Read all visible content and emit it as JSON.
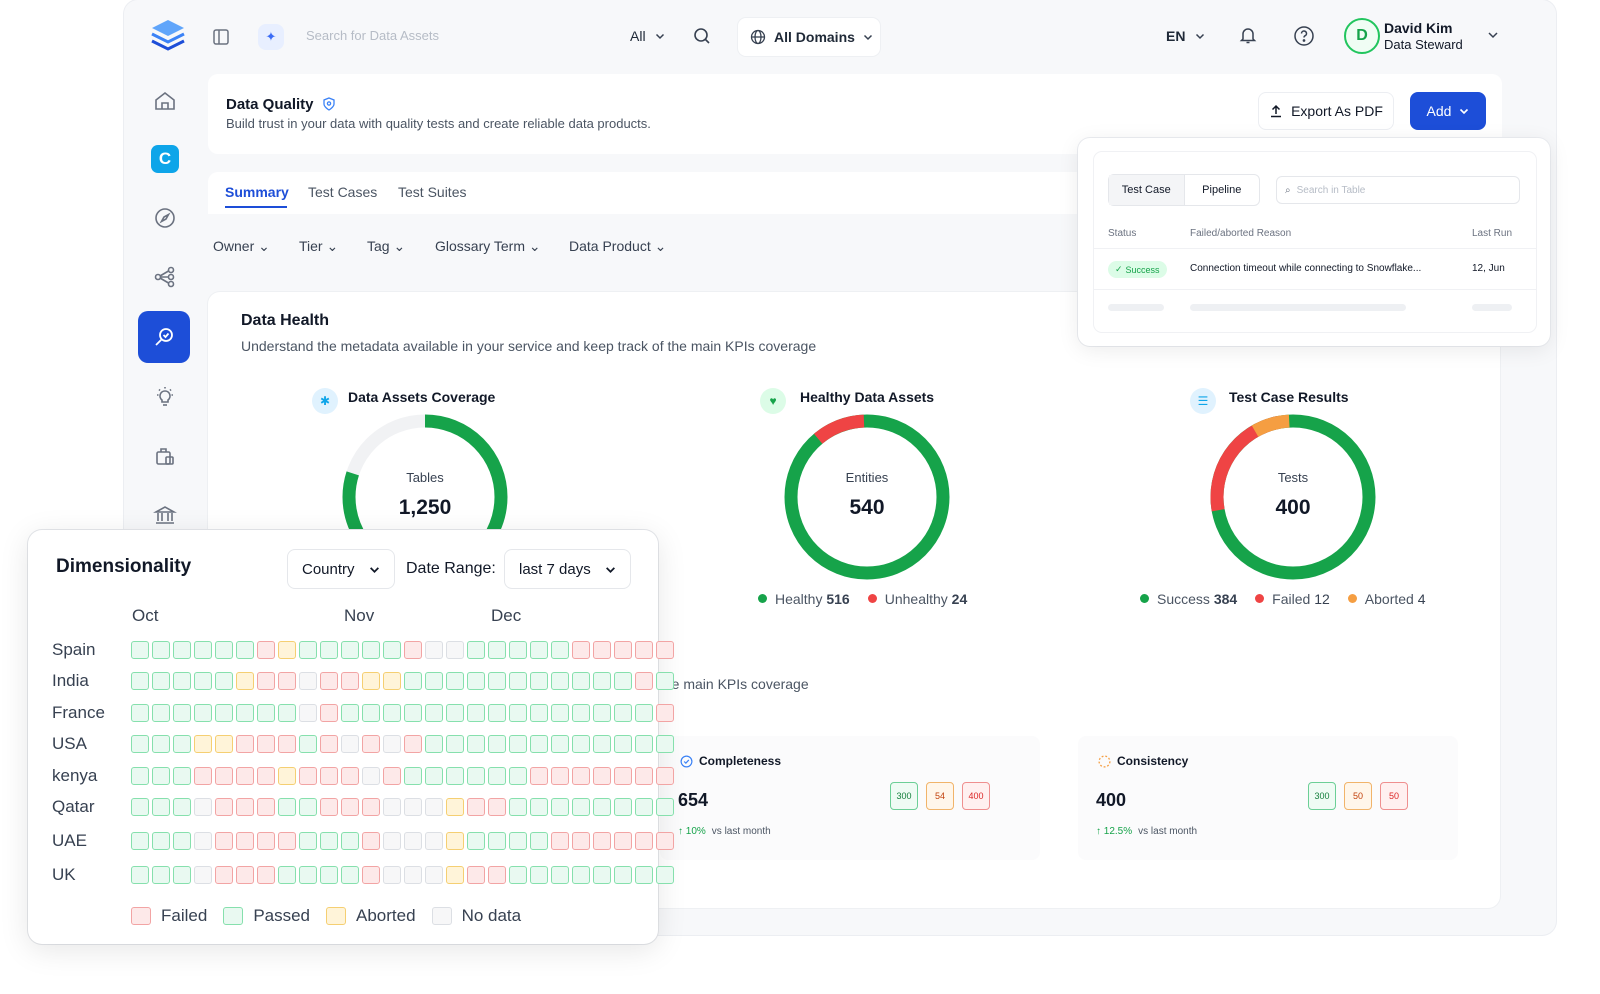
{
  "topbar": {
    "search_placeholder": "Search for Data Assets",
    "search_scope": "All",
    "domains": "All Domains",
    "language": "EN",
    "user_initial": "D",
    "user_name": "David Kim",
    "user_role": "Data Steward"
  },
  "sidebar": {
    "items": [
      {
        "icon": "home-icon"
      },
      {
        "icon": "collate-logo-icon"
      },
      {
        "icon": "explore-compass-icon"
      },
      {
        "icon": "lineage-icon"
      },
      {
        "icon": "data-quality-icon",
        "active": true
      },
      {
        "icon": "insights-bulb-icon"
      },
      {
        "icon": "data-products-icon"
      },
      {
        "icon": "governance-bank-icon"
      }
    ]
  },
  "header": {
    "title": "Data Quality",
    "subtitle": "Build trust in your data with quality tests and create reliable data products.",
    "export_label": "Export As PDF",
    "add_label": "Add"
  },
  "tabs": [
    "Summary",
    "Test Cases",
    "Test Suites"
  ],
  "filters": [
    "Owner",
    "Tier",
    "Tag",
    "Glossary Term",
    "Data Product"
  ],
  "data_health": {
    "title": "Data Health",
    "subtitle": "Understand the metadata available in your service and keep track of the main KPIs coverage",
    "subtitle_partial": "the main KPIs coverage",
    "kpis": [
      {
        "title": "Data Assets Coverage",
        "center_label": "Tables",
        "center_value": "1,250"
      },
      {
        "title": "Healthy Data Assets",
        "center_label": "Entities",
        "center_value": "540",
        "legend": [
          {
            "label": "Healthy",
            "value": "516",
            "color": "#16a34a"
          },
          {
            "label": "Unhealthy",
            "value": "24",
            "color": "#ef4444"
          }
        ]
      },
      {
        "title": "Test Case Results",
        "center_label": "Tests",
        "center_value": "400",
        "legend": [
          {
            "label": "Success",
            "value": "384",
            "color": "#16a34a"
          },
          {
            "label": "Failed",
            "value": "12",
            "color": "#ef4444"
          },
          {
            "label": "Aborted",
            "value": "4",
            "color": "#f59e42"
          }
        ]
      }
    ],
    "metrics": [
      {
        "title": "Completeness",
        "value": "654",
        "delta": "10%",
        "delta_note": "vs last month",
        "chips": [
          "300",
          "54",
          "400"
        ]
      },
      {
        "title": "Consistency",
        "value": "400",
        "delta": "12.5%",
        "delta_note": "vs last month",
        "chips": [
          "300",
          "50",
          "50"
        ]
      }
    ]
  },
  "popup": {
    "tabs": [
      "Test Case",
      "Pipeline"
    ],
    "search_placeholder": "Search in Table",
    "columns": [
      "Status",
      "Failed/aborted Reason",
      "Last Run"
    ],
    "row": {
      "status": "Success",
      "reason": "Connection timeout while connecting to Snowflake...",
      "last_run": "12, Jun"
    }
  },
  "dimensionality": {
    "title": "Dimensionality",
    "dimension": "Country",
    "date_range_label": "Date Range:",
    "date_range": "last 7 days",
    "months": [
      "Oct",
      "Nov",
      "Dec"
    ],
    "countries": [
      "Spain",
      "India",
      "France",
      "USA",
      "kenya",
      "Qatar",
      "UAE",
      "UK"
    ],
    "legend": [
      {
        "label": "Failed",
        "key": "f"
      },
      {
        "label": "Passed",
        "key": "p"
      },
      {
        "label": "Aborted",
        "key": "a"
      },
      {
        "label": "No data",
        "key": "n"
      }
    ],
    "rows": [
      "ppppppfapppppfnnpppppfffff",
      "pppppaffnffaapppppppppppfp",
      "ppppppppnfpppppppppppppppf",
      "pppaafffpfnfnfpppppppppppp",
      "pppffffafffnfppppppfffffff",
      "pppnfffppfffnnnaffpppppppp",
      "pppnffffpppfnnnappppffffff",
      "pppnfffppppfnnnaffpppppppp"
    ]
  }
}
